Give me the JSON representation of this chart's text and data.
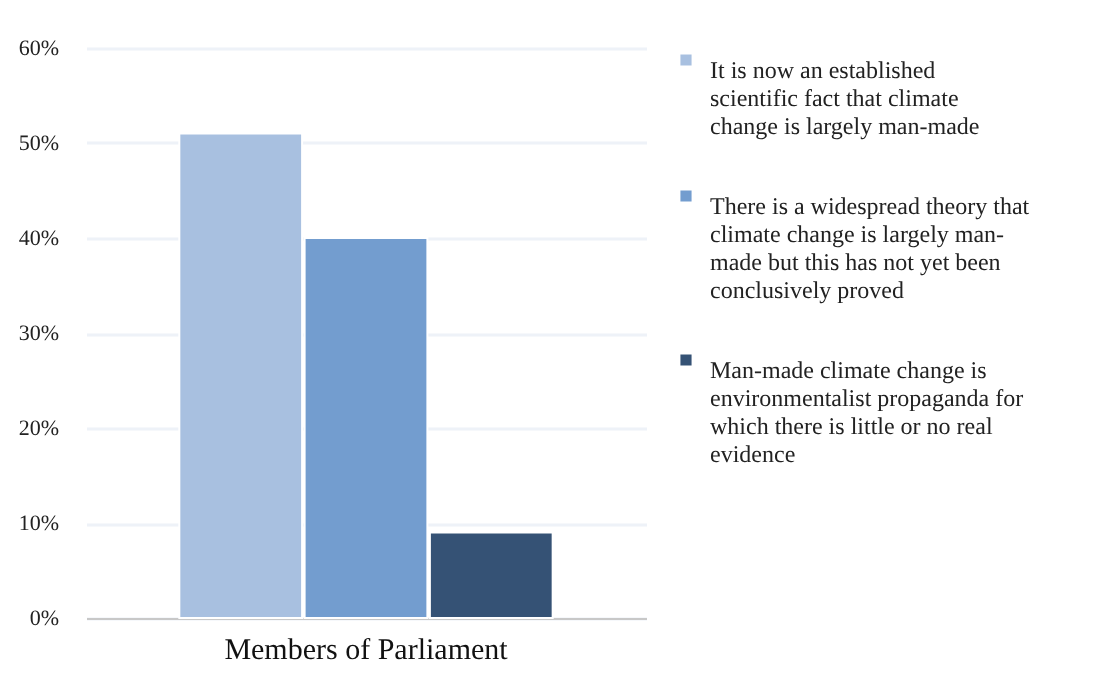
{
  "chart_data": {
    "type": "bar",
    "categories": [
      "Members of Parliament"
    ],
    "series": [
      {
        "name": "It is now an established scientific fact that climate change is largely man-made",
        "color": "#a8c0e0",
        "values": [
          51
        ]
      },
      {
        "name": "There is a widespread theory that climate change is largely man-made but this has not yet been conclusively proved",
        "color": "#739dcf",
        "values": [
          40
        ]
      },
      {
        "name": "Man-made climate change is environmentalist propaganda for which there is little or no real evidence",
        "color": "#355275",
        "values": [
          9
        ]
      }
    ],
    "ylim": [
      0,
      60
    ],
    "yticks": [
      {
        "value": 0,
        "label": "0%"
      },
      {
        "value": 10,
        "label": "10%"
      },
      {
        "value": 20,
        "label": "20%"
      },
      {
        "value": 30,
        "label": "30%"
      },
      {
        "value": 40,
        "label": "40%"
      },
      {
        "value": 50,
        "label": "50%"
      },
      {
        "value": 60,
        "label": "60%"
      }
    ],
    "grid": "y",
    "legend": "right"
  }
}
